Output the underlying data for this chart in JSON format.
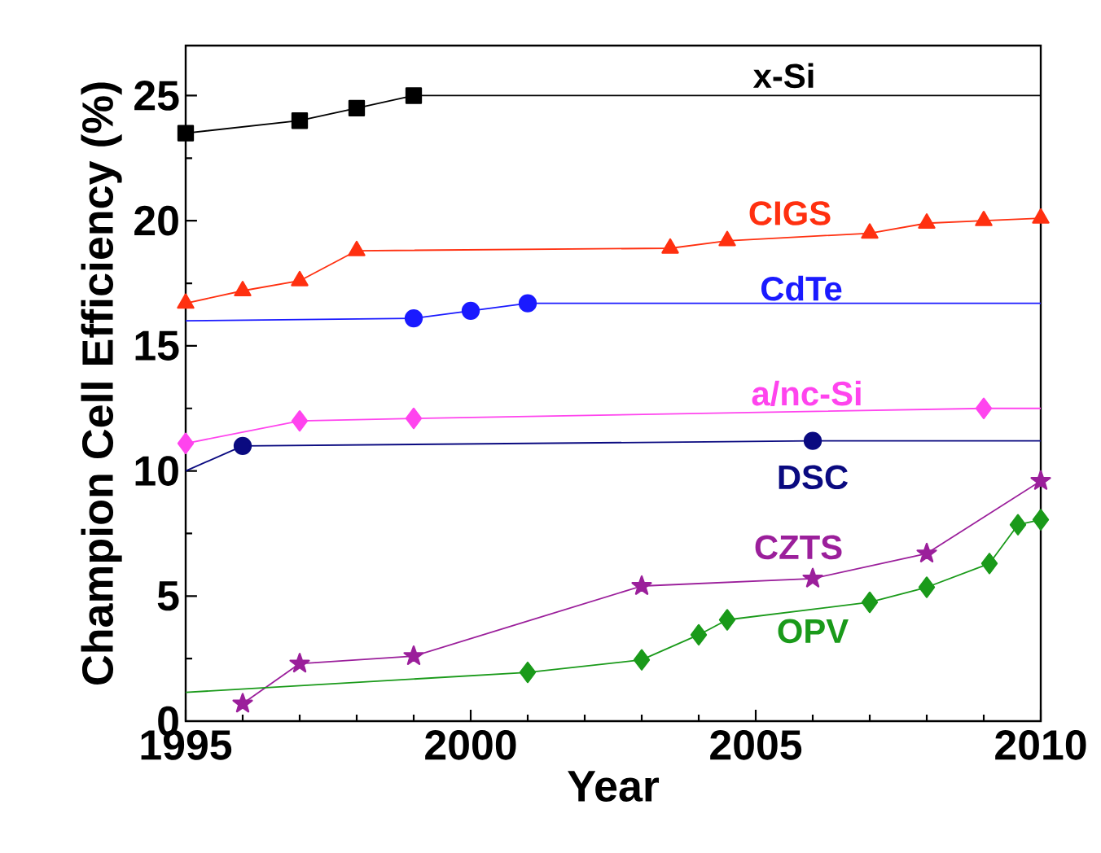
{
  "chart_data": {
    "type": "line",
    "xlabel": "Year",
    "ylabel": "Champion Cell Efficiency (%)",
    "xlim": [
      1995,
      2010
    ],
    "xticks": [
      1995,
      2000,
      2005,
      2010
    ],
    "ylim": [
      0,
      27
    ],
    "yticks": [
      0,
      5,
      10,
      15,
      20,
      25
    ],
    "grid": false,
    "legend": false,
    "line_style": "solid",
    "series": [
      {
        "name": "x-Si",
        "color": "#000000",
        "marker": "square",
        "x": [
          1995,
          1997,
          1998,
          1999
        ],
        "values": [
          23.5,
          24.0,
          24.5,
          25.0
        ]
      },
      {
        "color": "#000000",
        "marker": "none",
        "x": [
          1999,
          2010
        ],
        "values": [
          25.0,
          25.0
        ]
      },
      {
        "name": "CIGS",
        "color": "#ff3010",
        "marker": "triangle",
        "x": [
          1995,
          1996,
          1997,
          1998,
          2003.5,
          2004.5,
          2007,
          2008,
          2009,
          2010
        ],
        "values": [
          16.7,
          17.2,
          17.6,
          18.8,
          18.9,
          19.2,
          19.5,
          19.9,
          20.0,
          20.1
        ]
      },
      {
        "name": "CdTe",
        "color": "#1a1aff",
        "marker": "circle",
        "x": [
          1999,
          2000,
          2001
        ],
        "values": [
          16.1,
          16.4,
          16.7
        ]
      },
      {
        "color": "#1a1aff",
        "marker": "none",
        "x": [
          1995,
          1999
        ],
        "values": [
          16.0,
          16.1
        ]
      },
      {
        "color": "#1a1aff",
        "marker": "none",
        "x": [
          2001,
          2010
        ],
        "values": [
          16.7,
          16.7
        ]
      },
      {
        "name": "a/nc-Si",
        "color": "#ff44ee",
        "marker": "diamond",
        "x": [
          1995,
          1997,
          1999,
          2009
        ],
        "values": [
          11.1,
          12.0,
          12.1,
          12.5
        ]
      },
      {
        "color": "#ff44ee",
        "marker": "none",
        "x": [
          2009,
          2010
        ],
        "values": [
          12.5,
          12.5
        ]
      },
      {
        "name": "DSC",
        "color": "#0a0a80",
        "marker": "circle",
        "x": [
          1996,
          2006
        ],
        "values": [
          11.0,
          11.2
        ]
      },
      {
        "color": "#0a0a80",
        "marker": "none",
        "x": [
          1995,
          1996
        ],
        "values": [
          10.0,
          11.0
        ]
      },
      {
        "color": "#0a0a80",
        "marker": "none",
        "x": [
          2006,
          2010
        ],
        "values": [
          11.2,
          11.2
        ]
      },
      {
        "name": "CZTS",
        "color": "#9b1f9b",
        "marker": "star",
        "x": [
          1996,
          1997,
          1999,
          2003,
          2006,
          2008,
          2010
        ],
        "values": [
          0.7,
          2.3,
          2.6,
          5.4,
          5.7,
          6.7,
          9.6
        ]
      },
      {
        "name": "OPV",
        "color": "#1a9a1a",
        "marker": "diamond",
        "x": [
          2001,
          2003,
          2004,
          2004.5,
          2007,
          2008,
          2009.1,
          2009.6,
          2010
        ],
        "values": [
          1.95,
          2.45,
          3.45,
          4.05,
          4.75,
          5.35,
          6.3,
          7.85,
          8.05
        ]
      },
      {
        "color": "#1a9a1a",
        "marker": "none",
        "x": [
          1995,
          2001
        ],
        "values": [
          1.15,
          1.95
        ]
      }
    ]
  }
}
